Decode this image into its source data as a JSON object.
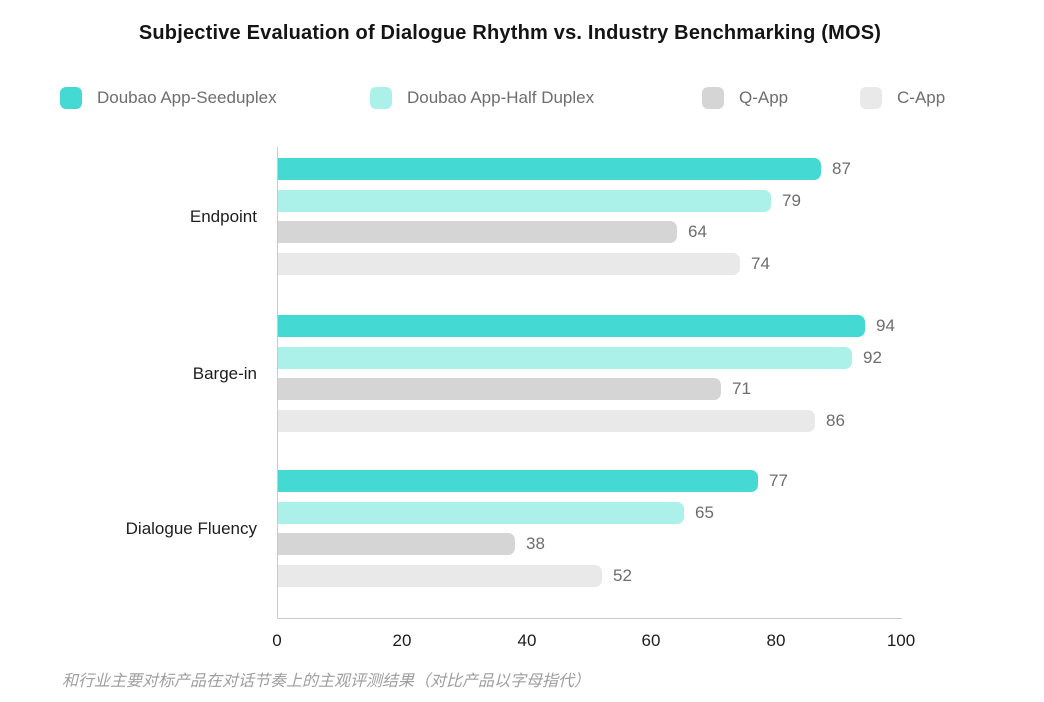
{
  "title": "Subjective Evaluation of Dialogue Rhythm vs. Industry Benchmarking (MOS)",
  "caption": "和行业主要对标产品在对话节奏上的主观评测结果（对比产品以字母指代）",
  "chart_data": {
    "type": "bar",
    "orientation": "horizontal",
    "title": "Subjective Evaluation of Dialogue Rhythm vs. Industry Benchmarking (MOS)",
    "categories": [
      "Endpoint",
      "Barge-in",
      "Dialogue Fluency"
    ],
    "series": [
      {
        "name": "Doubao App-Seeduplex",
        "color": "#45D9D4",
        "values": [
          87,
          94,
          77
        ]
      },
      {
        "name": "Doubao App-Half Duplex",
        "color": "#ABF0E9",
        "values": [
          79,
          92,
          65
        ]
      },
      {
        "name": "Q-App",
        "color": "#D5D5D5",
        "values": [
          64,
          71,
          38
        ]
      },
      {
        "name": "C-App",
        "color": "#E9E9E9",
        "values": [
          74,
          86,
          52
        ]
      }
    ],
    "xlim": [
      0,
      100
    ],
    "x_ticks": [
      0,
      20,
      40,
      60,
      80,
      100
    ],
    "value_labels_shown": true,
    "legend_position": "top",
    "grid": false,
    "axis_line_color": "#cbcbcb",
    "value_label_color": "#6d6d6d",
    "annotation": "和行业主要对标产品在对话节奏上的主观评测结果（对比产品以字母指代）"
  }
}
